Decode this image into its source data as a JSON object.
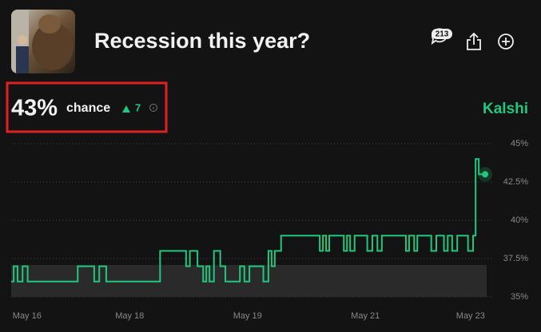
{
  "header": {
    "title": "Recession this year?",
    "comments": "213"
  },
  "market": {
    "probability": "43%",
    "label": "chance",
    "change": "7",
    "source": "Kalshi"
  },
  "chart_data": {
    "type": "line",
    "step": "post",
    "x": [
      15.75,
      15.79,
      15.85,
      15.93,
      16.01,
      16.8,
      17.06,
      17.14,
      17.25,
      18.1,
      18.51,
      18.57,
      18.69,
      18.78,
      18.83,
      18.88,
      18.95,
      19.05,
      19.13,
      19.36,
      19.43,
      19.51,
      19.73,
      19.81,
      19.86,
      19.91,
      20.01,
      20.62,
      20.67,
      20.72,
      20.77,
      21.0,
      21.05,
      21.1,
      21.17,
      21.37,
      21.45,
      21.53,
      21.6,
      21.98,
      22.03,
      22.11,
      22.16,
      22.38,
      22.46,
      22.58,
      22.64,
      22.71,
      22.79,
      22.96,
      23.04,
      23.08,
      23.13,
      23.23
    ],
    "series": [
      {
        "color": "#20c77f",
        "values": [
          36,
          37,
          36,
          37,
          36,
          37,
          36,
          37,
          36,
          38,
          37,
          38,
          37,
          36,
          37,
          36,
          38,
          37,
          36,
          37,
          36,
          37,
          36,
          38,
          37,
          38,
          39,
          38,
          39,
          38,
          39,
          38,
          39,
          38,
          39,
          38,
          39,
          38,
          39,
          38,
          39,
          38,
          39,
          38,
          39,
          38,
          39,
          38,
          39,
          38,
          39,
          44,
          43,
          43
        ]
      }
    ],
    "xlim": [
      15.75,
      23.33
    ],
    "xticks": [
      {
        "value": 16,
        "label": "May 16"
      },
      {
        "value": 17.62,
        "label": "May 18"
      },
      {
        "value": 19.48,
        "label": "May 19"
      },
      {
        "value": 21.34,
        "label": "May 21"
      },
      {
        "value": 23,
        "label": "May 23"
      }
    ],
    "ylim": [
      35,
      45
    ],
    "yticks": [
      {
        "value": 35,
        "label": "35%"
      },
      {
        "value": 37.5,
        "label": "37.5%"
      },
      {
        "value": 40,
        "label": "40%"
      },
      {
        "value": 42.5,
        "label": "42.5%"
      },
      {
        "value": 45,
        "label": "45%"
      }
    ],
    "grid": true
  }
}
